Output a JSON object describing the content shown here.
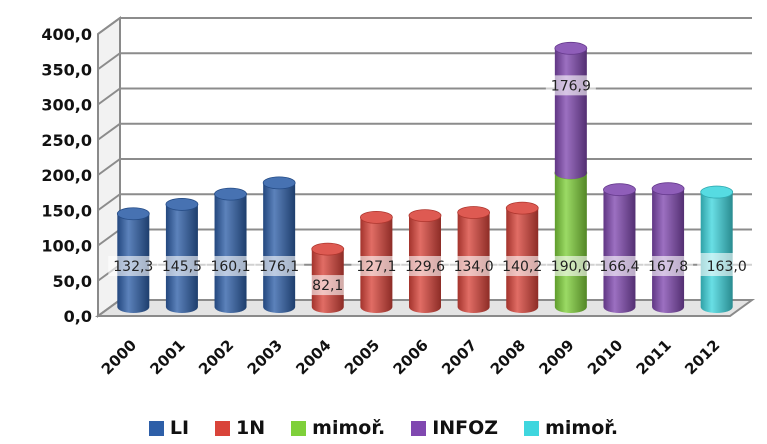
{
  "chart_data": {
    "type": "bar",
    "style": "3d-cylinder",
    "categories": [
      "2000",
      "2001",
      "2002",
      "2003",
      "2004",
      "2005",
      "2006",
      "2007",
      "2008",
      "2009",
      "2010",
      "2011",
      "2012"
    ],
    "series": [
      {
        "name": "LI",
        "color": "#2e5fa8",
        "values": [
          132.3,
          145.5,
          160.1,
          176.1,
          null,
          null,
          null,
          null,
          null,
          null,
          null,
          null,
          null
        ],
        "labels": [
          "132,3",
          "145,5",
          "160,1",
          "176,1",
          "",
          "",
          "",
          "",
          "",
          "",
          "",
          "",
          ""
        ]
      },
      {
        "name": "1N",
        "color": "#d9443a",
        "values": [
          null,
          null,
          null,
          null,
          82.1,
          127.1,
          129.6,
          134.0,
          140.2,
          null,
          null,
          null,
          null
        ],
        "labels": [
          "",
          "",
          "",
          "",
          "82,1",
          "127,1",
          "129,6",
          "134,0",
          "140,2",
          "",
          "",
          "",
          ""
        ]
      },
      {
        "name": "mimoř.",
        "color": "#7fd03a",
        "values": [
          null,
          null,
          null,
          null,
          null,
          null,
          null,
          null,
          null,
          190.0,
          null,
          null,
          null
        ],
        "labels": [
          "",
          "",
          "",
          "",
          "",
          "",
          "",
          "",
          "",
          "190,0",
          "",
          "",
          ""
        ]
      },
      {
        "name": "INFOZ",
        "color": "#8048b0",
        "values": [
          null,
          null,
          null,
          null,
          null,
          null,
          null,
          null,
          null,
          176.9,
          166.4,
          167.8,
          null
        ],
        "labels": [
          "",
          "",
          "",
          "",
          "",
          "",
          "",
          "",
          "",
          "176,9",
          "166,4",
          "167,8",
          ""
        ]
      },
      {
        "name": "mimoř.",
        "color": "#3fd6de",
        "values": [
          null,
          null,
          null,
          null,
          null,
          null,
          null,
          null,
          null,
          null,
          null,
          null,
          163.0
        ],
        "labels": [
          "",
          "",
          "",
          "",
          "",
          "",
          "",
          "",
          "",
          "",
          "",
          "",
          "163,0"
        ]
      }
    ],
    "stacked": true,
    "yticks": [
      "0,0",
      "50,0",
      "100,0",
      "150,0",
      "200,0",
      "250,0",
      "300,0",
      "350,0",
      "400,0"
    ],
    "ylim": [
      0,
      400
    ],
    "grid": true,
    "legend_position": "bottom"
  }
}
